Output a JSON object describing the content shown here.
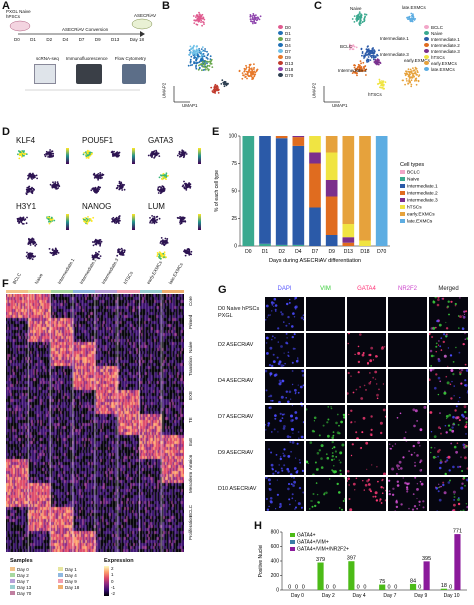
{
  "panelA": {
    "label": "A",
    "stage1": "PXGL Naive hPSCs",
    "stage2": "ASECRiAV Conversion",
    "stage3": "ASECRiAV",
    "days": [
      "D0",
      "D1",
      "D2",
      "D4",
      "D7",
      "D9",
      "D13"
    ],
    "endday": "Day 18",
    "methods": [
      "scRNA-seq",
      "Immunofluorescence",
      "Flow Cytometry"
    ]
  },
  "panelB": {
    "label": "B",
    "xlabel": "UMAP1",
    "ylabel": "UMAP2",
    "legend": [
      {
        "name": "D0",
        "color": "#e05a8f"
      },
      {
        "name": "D1",
        "color": "#1f6fb5"
      },
      {
        "name": "D2",
        "color": "#6aa84f"
      },
      {
        "name": "D4",
        "color": "#1f6fb5"
      },
      {
        "name": "D7",
        "color": "#6fc1e8"
      },
      {
        "name": "D9",
        "color": "#e7792b"
      },
      {
        "name": "D13",
        "color": "#c0392b"
      },
      {
        "name": "D18",
        "color": "#8e44ad"
      },
      {
        "name": "D70",
        "color": "#2c3e50"
      }
    ]
  },
  "panelC": {
    "label": "C",
    "xlabel": "UMAP1",
    "ylabel": "UMAP2",
    "legend": [
      {
        "name": "BCLC",
        "color": "#f2a6c8"
      },
      {
        "name": "Naive",
        "color": "#3aa98f"
      },
      {
        "name": "Intermediate.1",
        "color": "#2b5aa8"
      },
      {
        "name": "Intermediate.2",
        "color": "#e06c1f"
      },
      {
        "name": "Intermediate.3",
        "color": "#7b2f8c"
      },
      {
        "name": "hTSCs",
        "color": "#f0e442"
      },
      {
        "name": "early.EXMCs",
        "color": "#e6a23c"
      },
      {
        "name": "late.EXMCs",
        "color": "#5dade2"
      }
    ],
    "cluster_labels": [
      "Naive",
      "late.EXMCs",
      "BCLC",
      "Intermediate.1",
      "Intermediate.2",
      "Intermediate.3",
      "hTSCs",
      "early.EXMCs"
    ]
  },
  "panelD": {
    "label": "D",
    "genes": [
      "KLF4",
      "POU5F1",
      "GATA3",
      "H3Y1",
      "NANOG",
      "LUM"
    ]
  },
  "panelE": {
    "label": "E",
    "ylabel": "% of each cell type",
    "xlabel": "Days during ASECRiAV differentiation",
    "legend_title": "Cell types",
    "yticks": [
      "0",
      "25",
      "50",
      "75",
      "100"
    ],
    "chart_data": {
      "type": "bar",
      "categories": [
        "D0",
        "D1",
        "D2",
        "D4",
        "D7",
        "D9",
        "D13",
        "D18",
        "D70"
      ],
      "series": [
        {
          "name": "BCLC",
          "values": [
            0,
            0,
            0,
            0,
            0,
            0,
            0,
            0,
            0
          ]
        },
        {
          "name": "Naive",
          "values": [
            100,
            2,
            1,
            1,
            0,
            0,
            0,
            0,
            0
          ]
        },
        {
          "name": "Intermediate.1",
          "values": [
            0,
            98,
            97,
            90,
            35,
            10,
            0,
            0,
            0
          ]
        },
        {
          "name": "Intermediate.2",
          "values": [
            0,
            0,
            2,
            8,
            40,
            35,
            3,
            0,
            0
          ]
        },
        {
          "name": "Intermediate.3",
          "values": [
            0,
            0,
            0,
            1,
            10,
            15,
            5,
            0,
            0
          ]
        },
        {
          "name": "hTSCs",
          "values": [
            0,
            0,
            0,
            0,
            15,
            25,
            12,
            5,
            0
          ]
        },
        {
          "name": "early.EXMCs",
          "values": [
            0,
            0,
            0,
            0,
            0,
            15,
            80,
            95,
            0
          ]
        },
        {
          "name": "late.EXMCs",
          "values": [
            0,
            0,
            0,
            0,
            0,
            0,
            0,
            0,
            100
          ]
        }
      ],
      "ylim": [
        0,
        100
      ],
      "legend": "right"
    }
  },
  "panelF": {
    "label": "F",
    "col_groups": [
      "BCLC",
      "Naive",
      "Intermediate.1",
      "Intermediate.2",
      "Intermediate.3",
      "hTSCs",
      "early.EXMCs",
      "late.EXMCs"
    ],
    "row_groups": [
      "Core",
      "Primed",
      "Naive",
      "Transition",
      "EXE",
      "TE",
      "ExE",
      "Amnion",
      "Mesoderm",
      "BCLC",
      "Proliferation"
    ],
    "samples_title": "Samples",
    "samples": [
      {
        "name": "Day 0",
        "color": "#f3c38a"
      },
      {
        "name": "Day 1",
        "color": "#e6e6a0"
      },
      {
        "name": "Day 2",
        "color": "#a7d8a0"
      },
      {
        "name": "Day 4",
        "color": "#8fb8e0"
      },
      {
        "name": "Day 7",
        "color": "#b7a0d8"
      },
      {
        "name": "Day 9",
        "color": "#f29fb0"
      },
      {
        "name": "Day 13",
        "color": "#9ad0d0"
      },
      {
        "name": "Day 18",
        "color": "#f0b070"
      },
      {
        "name": "Day 70",
        "color": "#c07fa0"
      }
    ],
    "expression_title": "Expression",
    "expression_ticks": [
      "2",
      "1",
      "0",
      "-1",
      "-2"
    ]
  },
  "panelG": {
    "label": "G",
    "columns": [
      "DAPI",
      "VIM",
      "GATA4",
      "NR2F2",
      "Merged"
    ],
    "column_colors": [
      "#5a5aff",
      "#33cc33",
      "#ff3377",
      "#cc44cc",
      "#222222"
    ],
    "rows": [
      "D0 Naive hPSCs PXGL",
      "D2 ASECRiAV",
      "D4 ASECRiAV",
      "D7 ASECRiAV",
      "D9 ASECRiAV",
      "D10 ASECRiAV"
    ]
  },
  "panelH": {
    "label": "H",
    "ylabel": "Positive Nuclei",
    "yticks": [
      "0",
      "200",
      "400",
      "600",
      "800"
    ],
    "legend": [
      {
        "name": "GATA4+",
        "color": "#4cbb17"
      },
      {
        "name": "GATA4+/VIM+",
        "color": "#3a7ca5"
      },
      {
        "name": "GATA4+/VIM+/NR2F2+",
        "color": "#8b1a9b"
      }
    ],
    "chart_data": {
      "type": "bar",
      "categories": [
        "Day 0",
        "Day 2",
        "Day 4",
        "Day 7",
        "Day 9",
        "Day 10"
      ],
      "series": [
        {
          "name": "GATA4+",
          "values": [
            0,
            379,
            397,
            75,
            84,
            18
          ]
        },
        {
          "name": "GATA4+/VIM+",
          "values": [
            0,
            0,
            0,
            0,
            0,
            0
          ]
        },
        {
          "name": "GATA4+/VIM+/NR2F2+",
          "values": [
            0,
            0,
            0,
            0,
            395,
            771
          ]
        }
      ],
      "value_labels": [
        [
          "0",
          "0",
          "0"
        ],
        [
          "379",
          "0",
          "0"
        ],
        [
          "397",
          "0",
          "0"
        ],
        [
          "75",
          "0",
          "0"
        ],
        [
          "84",
          "0",
          "395"
        ],
        [
          "18",
          "0",
          "771"
        ]
      ],
      "ylim": [
        0,
        800
      ],
      "legend": "top-left"
    }
  }
}
